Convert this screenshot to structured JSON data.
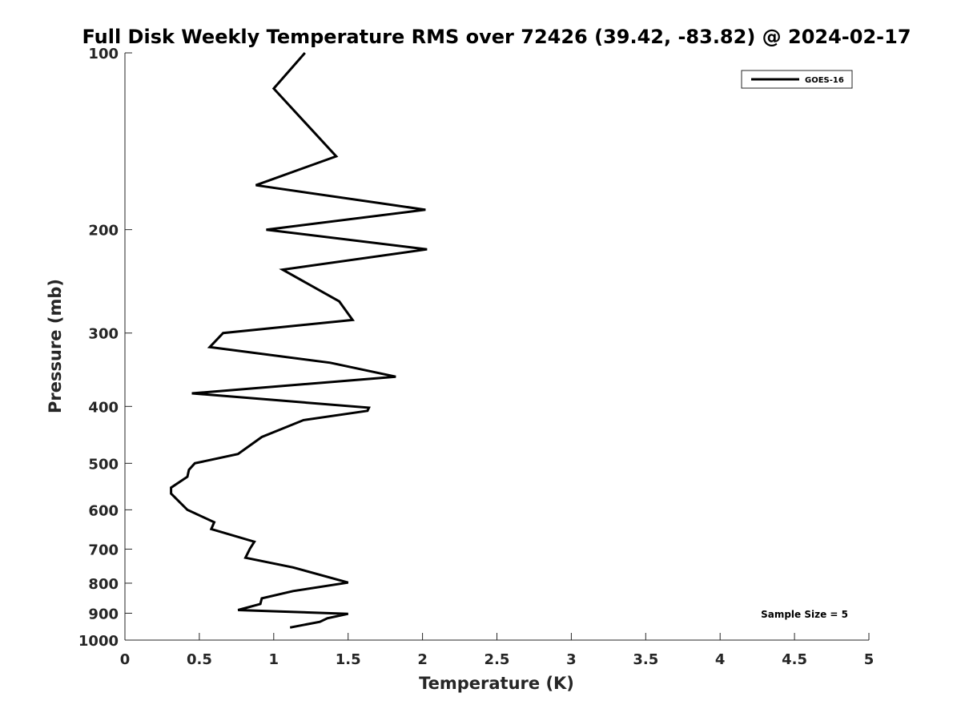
{
  "chart_data": {
    "type": "line",
    "title": "Full Disk Weekly Temperature RMS over 72426 (39.42, -83.82) @ 2024-02-17",
    "xlabel": "Temperature (K)",
    "ylabel": "Pressure (mb)",
    "xlim": [
      0,
      5
    ],
    "ylim": [
      100,
      1000
    ],
    "y_scale": "log",
    "y_reversed": true,
    "grid": false,
    "x_ticks": [
      0,
      0.5,
      1,
      1.5,
      2,
      2.5,
      3,
      3.5,
      4,
      4.5,
      5
    ],
    "x_tick_labels": [
      "0",
      "0.5",
      "1",
      "1.5",
      "2",
      "2.5",
      "3",
      "3.5",
      "4",
      "4.5",
      "5"
    ],
    "y_ticks": [
      100,
      200,
      300,
      400,
      500,
      600,
      700,
      800,
      900,
      1000
    ],
    "y_tick_labels": [
      "100",
      "200",
      "300",
      "400",
      "500",
      "600",
      "700",
      "800",
      "900",
      "1000"
    ],
    "legend_position": "top-right",
    "annotation": "Sample Size = 5",
    "series": [
      {
        "name": "GOES-16",
        "color": "#000000",
        "x": [
          1.21,
          1.0,
          1.42,
          0.88,
          2.02,
          0.95,
          2.03,
          1.06,
          1.44,
          1.53,
          0.66,
          0.57,
          1.38,
          1.82,
          0.45,
          1.64,
          1.63,
          1.2,
          0.92,
          0.76,
          0.47,
          0.43,
          0.42,
          0.31,
          0.31,
          0.42,
          0.6,
          0.58,
          0.87,
          0.84,
          0.81,
          1.13,
          1.5,
          1.13,
          0.92,
          0.91,
          0.76,
          1.5,
          1.36,
          1.31,
          1.11
        ],
        "y": [
          100,
          115,
          150,
          168,
          185,
          200,
          216,
          234,
          265,
          285,
          300,
          317,
          337,
          356,
          380,
          402,
          407,
          422,
          451,
          482,
          500,
          513,
          527,
          550,
          563,
          600,
          630,
          647,
          680,
          699,
          724,
          752,
          798,
          825,
          849,
          868,
          889,
          902,
          918,
          931,
          952
        ]
      }
    ]
  }
}
